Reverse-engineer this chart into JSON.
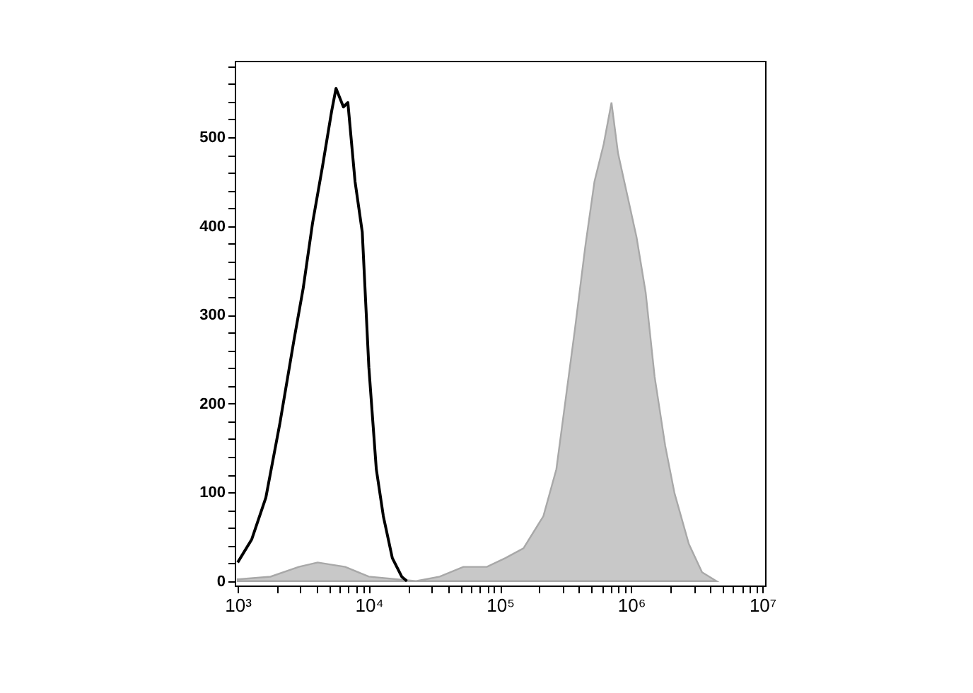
{
  "chart_data": {
    "type": "area",
    "log": "x",
    "grid": false,
    "xlim": [
      950,
      10500000
    ],
    "ylim": [
      -5,
      586
    ],
    "xticks": [
      {
        "value": 1000,
        "label": "10³"
      },
      {
        "value": 2000,
        "label": null
      },
      {
        "value": 3000,
        "label": null
      },
      {
        "value": 4000,
        "label": null
      },
      {
        "value": 5000,
        "label": null
      },
      {
        "value": 6000,
        "label": null
      },
      {
        "value": 7000,
        "label": null
      },
      {
        "value": 8000,
        "label": null
      },
      {
        "value": 9000,
        "label": null
      },
      {
        "value": 10000,
        "label": "10⁴"
      },
      {
        "value": 20000,
        "label": null
      },
      {
        "value": 30000,
        "label": null
      },
      {
        "value": 40000,
        "label": null
      },
      {
        "value": 50000,
        "label": null
      },
      {
        "value": 60000,
        "label": null
      },
      {
        "value": 70000,
        "label": null
      },
      {
        "value": 80000,
        "label": null
      },
      {
        "value": 90000,
        "label": null
      },
      {
        "value": 100000,
        "label": "10⁵"
      },
      {
        "value": 200000,
        "label": null
      },
      {
        "value": 300000,
        "label": null
      },
      {
        "value": 400000,
        "label": null
      },
      {
        "value": 500000,
        "label": null
      },
      {
        "value": 600000,
        "label": null
      },
      {
        "value": 700000,
        "label": null
      },
      {
        "value": 800000,
        "label": null
      },
      {
        "value": 900000,
        "label": null
      },
      {
        "value": 1000000,
        "label": "10⁶"
      },
      {
        "value": 2000000,
        "label": null
      },
      {
        "value": 3000000,
        "label": null
      },
      {
        "value": 4000000,
        "label": null
      },
      {
        "value": 5000000,
        "label": null
      },
      {
        "value": 6000000,
        "label": null
      },
      {
        "value": 7000000,
        "label": null
      },
      {
        "value": 8000000,
        "label": null
      },
      {
        "value": 9000000,
        "label": null
      },
      {
        "value": 10000000,
        "label": "10⁷"
      }
    ],
    "yticks": [
      0,
      {
        "value": 20,
        "label": null
      },
      {
        "value": 40,
        "label": null
      },
      {
        "value": 60,
        "label": null
      },
      {
        "value": 80,
        "label": null
      },
      100,
      {
        "value": 120,
        "label": null
      },
      {
        "value": 140,
        "label": null
      },
      {
        "value": 160,
        "label": null
      },
      {
        "value": 180,
        "label": null
      },
      200,
      {
        "value": 220,
        "label": null
      },
      {
        "value": 240,
        "label": null
      },
      {
        "value": 260,
        "label": null
      },
      {
        "value": 280,
        "label": null
      },
      300,
      {
        "value": 320,
        "label": null
      },
      {
        "value": 340,
        "label": null
      },
      {
        "value": 360,
        "label": null
      },
      {
        "value": 380,
        "label": null
      },
      400,
      {
        "value": 420,
        "label": null
      },
      {
        "value": 440,
        "label": null
      },
      {
        "value": 460,
        "label": null
      },
      {
        "value": 480,
        "label": null
      },
      500,
      {
        "value": 520,
        "label": null
      },
      {
        "value": 540,
        "label": null
      },
      {
        "value": 560,
        "label": null
      },
      {
        "value": 580,
        "label": null
      }
    ],
    "series": [
      {
        "color": "#c8c8c8",
        "x": [
          1000,
          1780,
          2920,
          4070,
          6610,
          10000,
          22900,
          34700,
          52500,
          79400,
          110000,
          151000,
          214000,
          269000,
          316000,
          372000,
          447000,
          525000,
          617000,
          708000,
          794000,
          933000,
          1100000,
          1290000,
          1510000,
          1820000,
          2140000,
          2750000,
          3470000,
          4470000
        ],
        "values": [
          2,
          5,
          16,
          21,
          16,
          5,
          0,
          5,
          16,
          16,
          26,
          37,
          73,
          126,
          204,
          283,
          377,
          450,
          492,
          539,
          482,
          435,
          387,
          325,
          230,
          152,
          99,
          42,
          10,
          0
        ]
      },
      {
        "type": "line",
        "color": "#000000",
        "x": [
          1000,
          1280,
          1640,
          2100,
          2690,
          3160,
          3720,
          4420,
          5200,
          5620,
          6400,
          6920,
          7850,
          8910,
          10000,
          11400,
          12900,
          15100,
          17800,
          19500
        ],
        "values": [
          21,
          47,
          94,
          178,
          272,
          330,
          403,
          466,
          529,
          555,
          534,
          539,
          450,
          393,
          241,
          126,
          73,
          26,
          5,
          0
        ]
      }
    ]
  }
}
